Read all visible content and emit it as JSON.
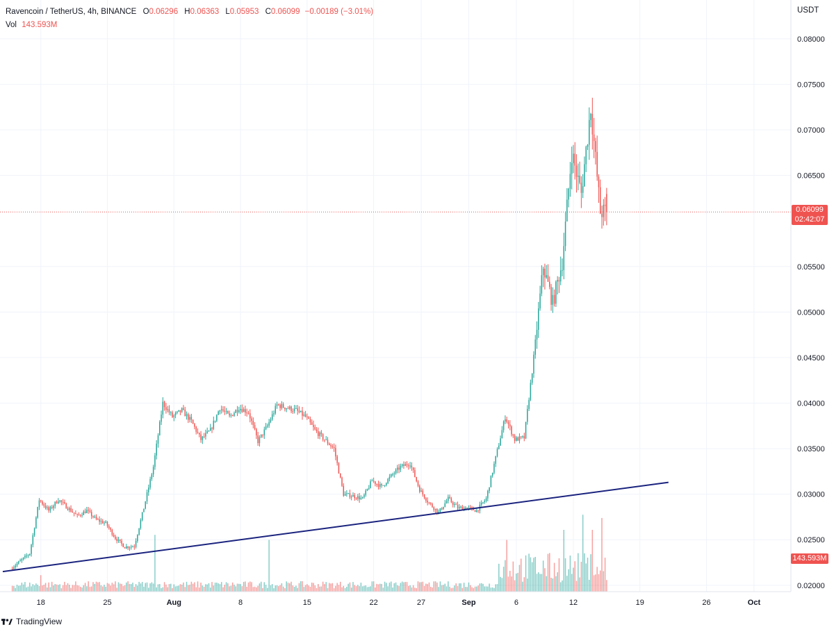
{
  "legend": {
    "symbol": "Ravencoin / TetherUS, 4h, BINANCE",
    "o_label": "O",
    "o": "0.06296",
    "h_label": "H",
    "h": "0.06363",
    "l_label": "L",
    "l": "0.05953",
    "c_label": "C",
    "c": "0.06099",
    "change": "−0.00189 (−3.01%)",
    "vol_label": "Vol",
    "vol": "143.593M"
  },
  "currency": "USDT",
  "last_price_tag": "0.06099",
  "countdown_tag": "02:42:07",
  "volume_tag": "143.593M",
  "brand": "TradingView",
  "colors": {
    "up": "#26a69a",
    "down": "#ef5350",
    "trendline": "#1a237e",
    "grid": "#f0f3fa"
  },
  "chart_data": {
    "type": "candlestick",
    "title": "Ravencoin / TetherUS, 4h, BINANCE",
    "y_axis": {
      "ticks": [
        0.02,
        0.025,
        0.03,
        0.035,
        0.04,
        0.045,
        0.05,
        0.055,
        0.065,
        0.07,
        0.075,
        0.08
      ],
      "tick_labels": [
        "0.02000",
        "0.02500",
        "0.03000",
        "0.03500",
        "0.04000",
        "0.04500",
        "0.05000",
        "0.05500",
        "0.06500",
        "0.07000",
        "0.07500",
        "0.08000"
      ],
      "range": [
        0.0193,
        0.0822
      ],
      "side": "right"
    },
    "x_axis": {
      "ticks": [
        "18",
        "25",
        "Aug",
        "8",
        "15",
        "22",
        "27",
        "Sep",
        "6",
        "12",
        "19",
        "26",
        "Oct"
      ],
      "tick_dates": [
        "2022-07-18",
        "2022-07-25",
        "2022-08-01",
        "2022-08-08",
        "2022-08-15",
        "2022-08-22",
        "2022-08-27",
        "2022-09-01",
        "2022-09-06",
        "2022-09-12",
        "2022-09-19",
        "2022-09-26",
        "2022-10-01"
      ],
      "range": [
        "2022-07-14",
        "2022-10-04"
      ]
    },
    "price_path": [
      [
        "2022-07-15",
        0.0218
      ],
      [
        "2022-07-17",
        0.0235
      ],
      [
        "2022-07-18",
        0.0294
      ],
      [
        "2022-07-19",
        0.0282
      ],
      [
        "2022-07-20",
        0.0294
      ],
      [
        "2022-07-21",
        0.0285
      ],
      [
        "2022-07-22",
        0.0276
      ],
      [
        "2022-07-23",
        0.0282
      ],
      [
        "2022-07-24",
        0.0272
      ],
      [
        "2022-07-25",
        0.0268
      ],
      [
        "2022-07-26",
        0.0252
      ],
      [
        "2022-07-27",
        0.0242
      ],
      [
        "2022-07-28",
        0.0243
      ],
      [
        "2022-07-29",
        0.0285
      ],
      [
        "2022-07-30",
        0.033
      ],
      [
        "2022-07-31",
        0.04
      ],
      [
        "2022-08-01",
        0.0385
      ],
      [
        "2022-08-02",
        0.0392
      ],
      [
        "2022-08-03",
        0.038
      ],
      [
        "2022-08-04",
        0.036
      ],
      [
        "2022-08-05",
        0.037
      ],
      [
        "2022-08-06",
        0.0395
      ],
      [
        "2022-08-07",
        0.0385
      ],
      [
        "2022-08-08",
        0.0395
      ],
      [
        "2022-08-09",
        0.039
      ],
      [
        "2022-08-10",
        0.0358
      ],
      [
        "2022-08-11",
        0.0375
      ],
      [
        "2022-08-12",
        0.0398
      ],
      [
        "2022-08-13",
        0.0395
      ],
      [
        "2022-08-14",
        0.0392
      ],
      [
        "2022-08-15",
        0.0385
      ],
      [
        "2022-08-16",
        0.037
      ],
      [
        "2022-08-17",
        0.036
      ],
      [
        "2022-08-18",
        0.035
      ],
      [
        "2022-08-19",
        0.03
      ],
      [
        "2022-08-20",
        0.0298
      ],
      [
        "2022-08-21",
        0.0295
      ],
      [
        "2022-08-22",
        0.0315
      ],
      [
        "2022-08-23",
        0.0308
      ],
      [
        "2022-08-24",
        0.032
      ],
      [
        "2022-08-25",
        0.033
      ],
      [
        "2022-08-26",
        0.0334
      ],
      [
        "2022-08-27",
        0.0305
      ],
      [
        "2022-08-28",
        0.029
      ],
      [
        "2022-08-29",
        0.028
      ],
      [
        "2022-08-30",
        0.0295
      ],
      [
        "2022-08-31",
        0.0285
      ],
      [
        "2022-09-01",
        0.0285
      ],
      [
        "2022-09-02",
        0.0282
      ],
      [
        "2022-09-03",
        0.0295
      ],
      [
        "2022-09-04",
        0.034
      ],
      [
        "2022-09-05",
        0.0385
      ],
      [
        "2022-09-06",
        0.036
      ],
      [
        "2022-09-07",
        0.0362
      ],
      [
        "2022-09-08",
        0.045
      ],
      [
        "2022-09-09",
        0.055
      ],
      [
        "2022-09-10",
        0.051
      ],
      [
        "2022-09-11",
        0.0555
      ],
      [
        "2022-09-12",
        0.0675
      ],
      [
        "2022-09-13",
        0.063
      ],
      [
        "2022-09-14",
        0.0725
      ],
      [
        "2022-09-15",
        0.061
      ]
    ],
    "last_close": 0.06099,
    "trendline": {
      "from": [
        "2022-07-14",
        0.0215
      ],
      "to": [
        "2022-09-22",
        0.0313
      ]
    },
    "volume_peaks_millions": [
      [
        "2022-07-18",
        30
      ],
      [
        "2022-07-30",
        110
      ],
      [
        "2022-08-11",
        100
      ],
      [
        "2022-09-05",
        100
      ],
      [
        "2022-09-11",
        120
      ],
      [
        "2022-09-13",
        150
      ],
      [
        "2022-09-14",
        120
      ],
      [
        "2022-09-15",
        143.593
      ]
    ],
    "grid": true,
    "legend_position": "top-left"
  }
}
